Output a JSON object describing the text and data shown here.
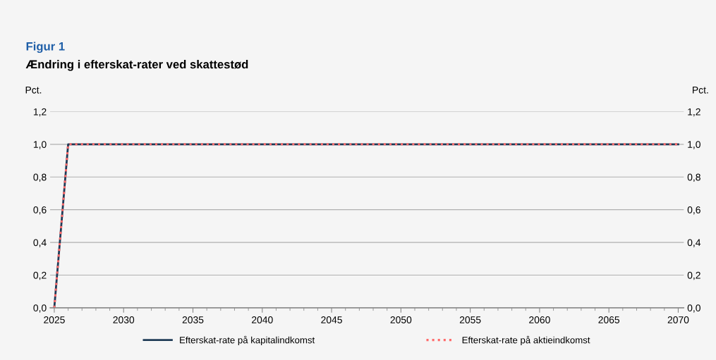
{
  "chart_data": {
    "type": "line",
    "title": "Figur 1",
    "subtitle": "Ændring i efterskat-rater ved skattestød",
    "ylabel": "Pct.",
    "y2label": "Pct.",
    "x": [
      2025,
      2026,
      2070
    ],
    "series": [
      {
        "name": "Efterskat-rate på kapitalindkomst",
        "color": "#1f3b57",
        "values": [
          0,
          1,
          1
        ],
        "line_style": "solid"
      },
      {
        "name": "Efterskat-rate på aktieindkomst",
        "color": "#ff6b6b",
        "values": [
          0,
          1,
          1
        ],
        "line_style": "dotted"
      }
    ],
    "xlim": [
      2024.7,
      2070.4
    ],
    "xticks": [
      2025,
      2030,
      2035,
      2040,
      2045,
      2050,
      2055,
      2060,
      2065,
      2070
    ],
    "ylim": [
      0,
      1.2
    ],
    "yticks": [
      {
        "value": 0,
        "label": "0,0"
      },
      {
        "value": 0.2,
        "label": "0,2"
      },
      {
        "value": 0.4,
        "label": "0,4"
      },
      {
        "value": 0.6,
        "label": "0,6"
      },
      {
        "value": 0.8,
        "label": "0,8"
      },
      {
        "value": 1.0,
        "label": "1,0"
      },
      {
        "value": 1.2,
        "label": "1,2"
      }
    ],
    "y2lim": [
      0,
      1.2
    ],
    "y2ticks": [
      {
        "value": 0,
        "label": "0,0"
      },
      {
        "value": 0.2,
        "label": "0,2"
      },
      {
        "value": 0.4,
        "label": "0,4"
      },
      {
        "value": 0.6,
        "label": "0,6"
      },
      {
        "value": 0.8,
        "label": "0,8"
      },
      {
        "value": 1.0,
        "label": "1,0"
      },
      {
        "value": 1.2,
        "label": "1,2"
      }
    ],
    "grid": "y",
    "legend": "bottom",
    "marker": "none"
  }
}
